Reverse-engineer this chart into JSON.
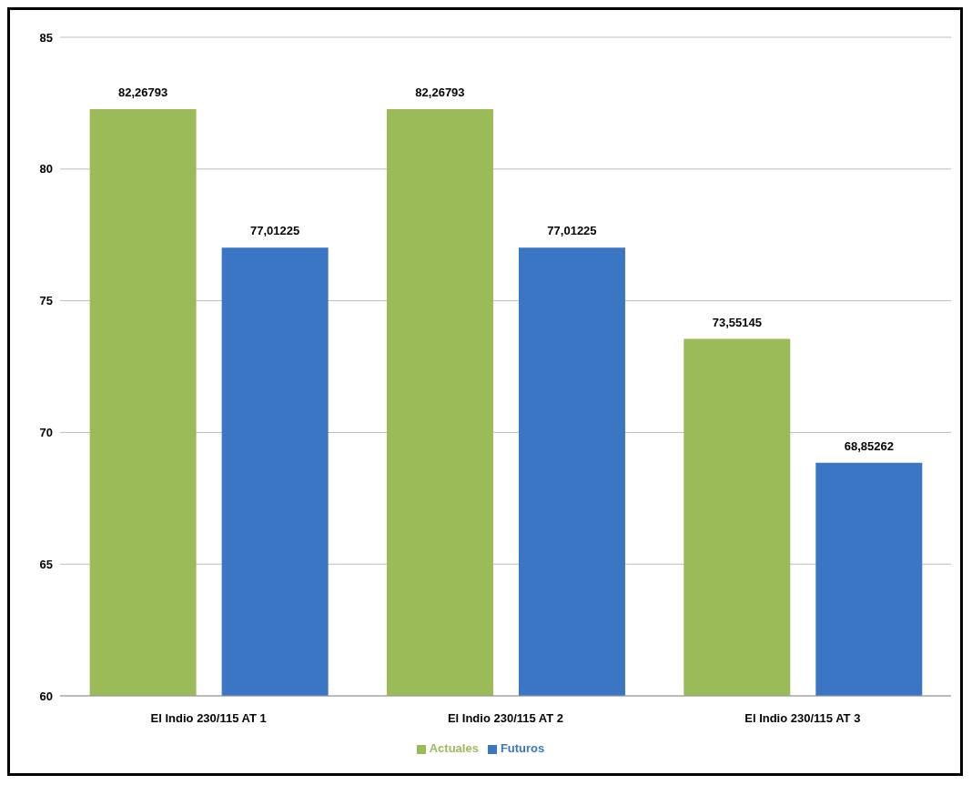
{
  "chart_data": {
    "type": "bar",
    "categories": [
      "El Indio 230/115 AT 1",
      "El Indio 230/115 AT 2",
      "El Indio 230/115 AT 3"
    ],
    "series": [
      {
        "name": "Actuales",
        "color": "#9bbb59",
        "values": [
          82.26793,
          82.26793,
          73.55145
        ],
        "value_labels": [
          "82,26793",
          "82,26793",
          "73,55145"
        ]
      },
      {
        "name": "Futuros",
        "color": "#3a76c4",
        "values": [
          77.01225,
          77.01225,
          68.85262
        ],
        "value_labels": [
          "77,01225",
          "77,01225",
          "68,85262"
        ]
      }
    ],
    "ylim": [
      60,
      85
    ],
    "yticks": [
      60,
      65,
      70,
      75,
      80,
      85
    ],
    "grid": "y",
    "legend": "bottom"
  }
}
